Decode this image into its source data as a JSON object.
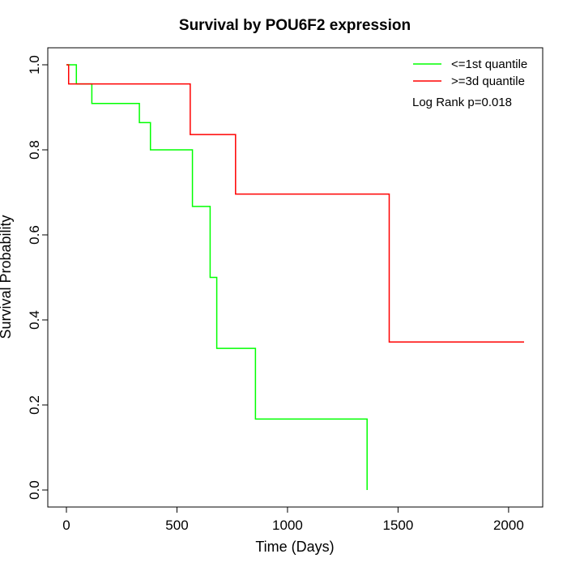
{
  "chart_data": {
    "type": "line",
    "title": "Survival by POU6F2 expression",
    "xlabel": "Time (Days)",
    "ylabel": "Survival Probability",
    "xlim": [
      0,
      2070
    ],
    "ylim": [
      0,
      1
    ],
    "xticks": [
      0,
      500,
      1000,
      1500,
      2000
    ],
    "xtick_labels": [
      "0",
      "500",
      "1000",
      "1500",
      "2000"
    ],
    "yticks": [
      0.0,
      0.2,
      0.4,
      0.6,
      0.8,
      1.0
    ],
    "ytick_labels": [
      "0.0",
      "0.2",
      "0.4",
      "0.6",
      "0.8",
      "1.0"
    ],
    "legend_position": "top-right",
    "annotation": "Log Rank p=0.018",
    "series": [
      {
        "name": "<=1st quantile",
        "color": "#00ff00",
        "step": "post",
        "x": [
          0,
          45,
          115,
          330,
          380,
          570,
          650,
          680,
          855,
          1360,
          1360
        ],
        "y": [
          1.0,
          0.955,
          0.909,
          0.864,
          0.8,
          0.667,
          0.5,
          0.333,
          0.167,
          0.167,
          0.0
        ]
      },
      {
        "name": ">=3d quantile",
        "color": "#ff0000",
        "step": "post",
        "x": [
          0,
          10,
          560,
          765,
          1460,
          2070
        ],
        "y": [
          1.0,
          0.955,
          0.836,
          0.696,
          0.348,
          0.348
        ]
      }
    ]
  }
}
